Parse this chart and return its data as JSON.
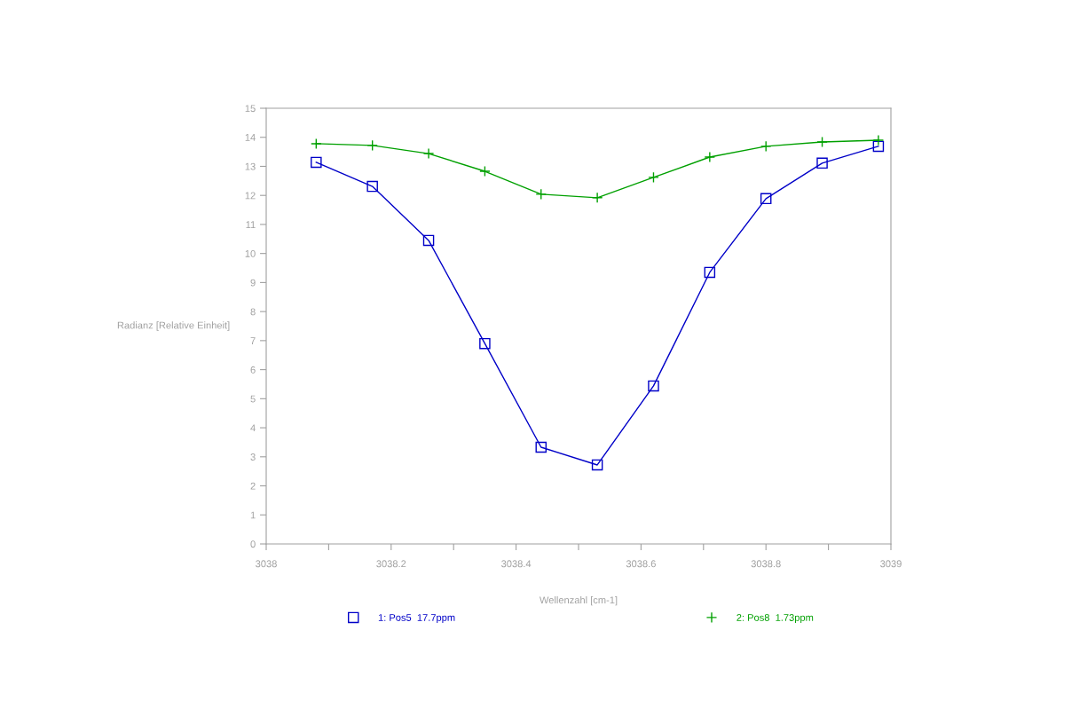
{
  "chart_data": {
    "type": "line",
    "xlabel": "Wellenzahl [cm-1]",
    "ylabel": "Radianz [Relative Einheit]",
    "xlim": [
      3038,
      3039
    ],
    "ylim": [
      0,
      15
    ],
    "xticks": [
      3038,
      {
        "value": 3038.1,
        "label": null
      },
      "3038.2",
      {
        "value": 3038.3,
        "label": null
      },
      "3038.4",
      {
        "value": 3038.5,
        "label": null
      },
      "3038.6",
      {
        "value": 3038.7,
        "label": null
      },
      "3038.8",
      {
        "value": 3038.9,
        "label": null
      },
      3039
    ],
    "yticks": [
      0,
      1,
      2,
      3,
      4,
      5,
      6,
      7,
      8,
      9,
      10,
      11,
      12,
      13,
      14,
      15
    ],
    "grid": false,
    "legend": "bottom",
    "x": [
      3038.08,
      3038.17,
      3038.26,
      3038.35,
      3038.44,
      3038.53,
      3038.62,
      3038.71,
      3038.8,
      3038.89,
      3038.98
    ],
    "series": [
      {
        "name": "1: Pos5  17.7ppm",
        "color": "#0000c8",
        "marker": "square",
        "values": [
          13.14,
          12.31,
          10.45,
          6.9,
          3.33,
          2.72,
          5.44,
          9.35,
          11.89,
          13.11,
          13.69
        ]
      },
      {
        "name": "2: Pos8  1.73ppm",
        "color": "#00a000",
        "marker": "cross",
        "values": [
          13.78,
          13.72,
          13.44,
          12.83,
          12.04,
          11.92,
          12.62,
          13.32,
          13.69,
          13.84,
          13.9
        ]
      }
    ]
  }
}
